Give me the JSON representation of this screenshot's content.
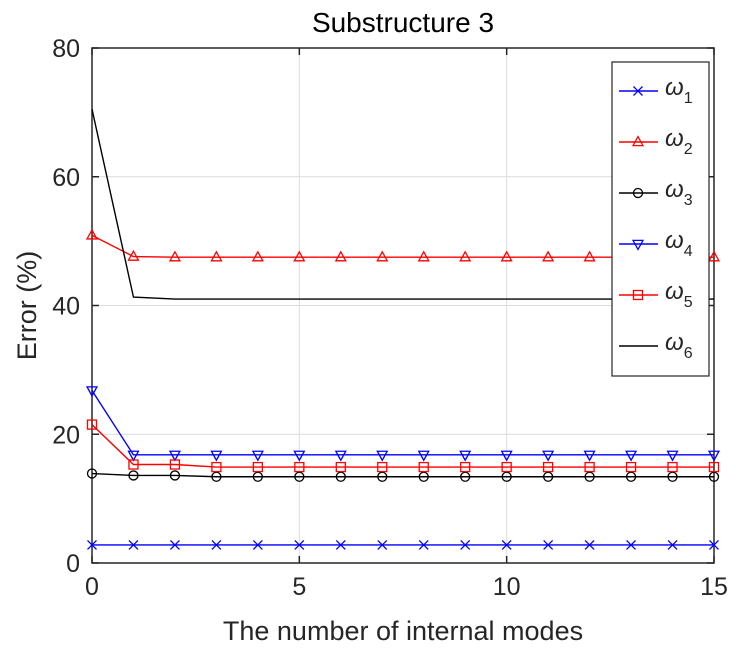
{
  "chart_data": {
    "type": "line",
    "title": "Substructure 3",
    "xlabel": "The number of internal modes",
    "ylabel": "Error (%)",
    "xlim": [
      0,
      15
    ],
    "ylim": [
      0,
      80
    ],
    "xticks": [
      0,
      5,
      10,
      15
    ],
    "yticks": [
      0,
      20,
      40,
      60,
      80
    ],
    "grid": true,
    "legend_position": "top-right",
    "x": [
      0,
      1,
      2,
      3,
      4,
      5,
      6,
      7,
      8,
      9,
      10,
      11,
      12,
      13,
      14,
      15
    ],
    "series": [
      {
        "name": "ω",
        "sub": "1",
        "color": "#0000ff",
        "marker": "x",
        "values": [
          2.8,
          2.8,
          2.8,
          2.8,
          2.8,
          2.8,
          2.8,
          2.8,
          2.8,
          2.8,
          2.8,
          2.8,
          2.8,
          2.8,
          2.8,
          2.8
        ]
      },
      {
        "name": "ω",
        "sub": "2",
        "color": "#ff0000",
        "marker": "triangle-up",
        "values": [
          50.9,
          47.6,
          47.5,
          47.5,
          47.5,
          47.5,
          47.5,
          47.5,
          47.5,
          47.5,
          47.5,
          47.5,
          47.5,
          47.5,
          47.5,
          47.5
        ]
      },
      {
        "name": "ω",
        "sub": "3",
        "color": "#000000",
        "marker": "circle",
        "values": [
          13.9,
          13.6,
          13.6,
          13.4,
          13.4,
          13.4,
          13.4,
          13.4,
          13.4,
          13.4,
          13.4,
          13.4,
          13.4,
          13.4,
          13.4,
          13.4
        ]
      },
      {
        "name": "ω",
        "sub": "4",
        "color": "#0000ff",
        "marker": "triangle-down",
        "values": [
          26.8,
          16.8,
          16.8,
          16.8,
          16.8,
          16.8,
          16.8,
          16.8,
          16.8,
          16.8,
          16.8,
          16.8,
          16.8,
          16.8,
          16.8,
          16.8
        ]
      },
      {
        "name": "ω",
        "sub": "5",
        "color": "#ff0000",
        "marker": "square",
        "values": [
          21.5,
          15.3,
          15.3,
          14.9,
          14.9,
          14.9,
          14.9,
          14.9,
          14.9,
          14.9,
          14.9,
          14.9,
          14.9,
          14.9,
          14.9,
          14.9
        ]
      },
      {
        "name": "ω",
        "sub": "6",
        "color": "#000000",
        "marker": "none",
        "values": [
          70.5,
          41.3,
          41.0,
          41.0,
          41.0,
          41.0,
          41.0,
          41.0,
          41.0,
          41.0,
          41.0,
          41.0,
          41.0,
          41.0,
          41.0,
          41.0
        ]
      }
    ]
  }
}
